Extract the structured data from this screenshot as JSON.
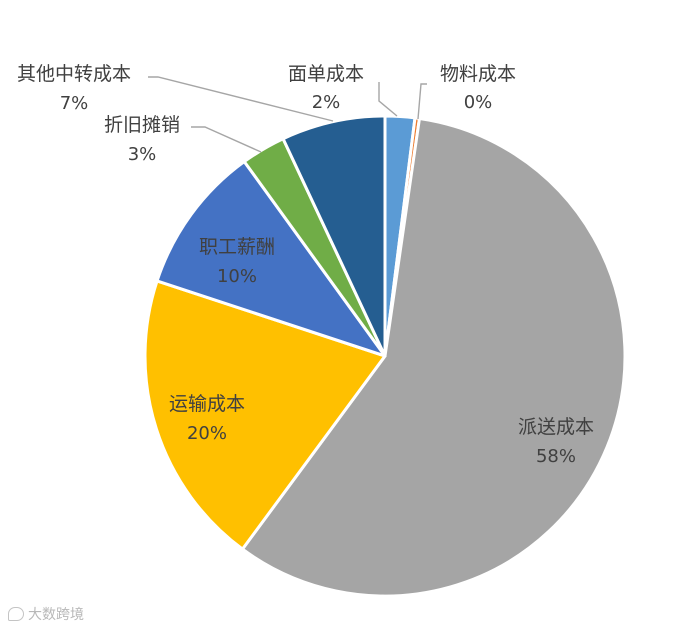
{
  "chart_data": {
    "type": "pie",
    "slices": [
      {
        "name": "面单成本",
        "value": 2,
        "label": "2%",
        "color": "#5b9bd5"
      },
      {
        "name": "物料成本",
        "value": 0.3,
        "label": "0%",
        "color": "#ed7d31"
      },
      {
        "name": "派送成本",
        "value": 58,
        "label": "58%",
        "color": "#a5a5a5"
      },
      {
        "name": "运输成本",
        "value": 20,
        "label": "20%",
        "color": "#ffc000"
      },
      {
        "name": "职工薪酬",
        "value": 10,
        "label": "10%",
        "color": "#4472c4"
      },
      {
        "name": "折旧摊销",
        "value": 3,
        "label": "3%",
        "color": "#70ad47"
      },
      {
        "name": "其他中转成本",
        "value": 7,
        "label": "7%",
        "color": "#255e91"
      }
    ]
  },
  "watermark": "大数跨境"
}
